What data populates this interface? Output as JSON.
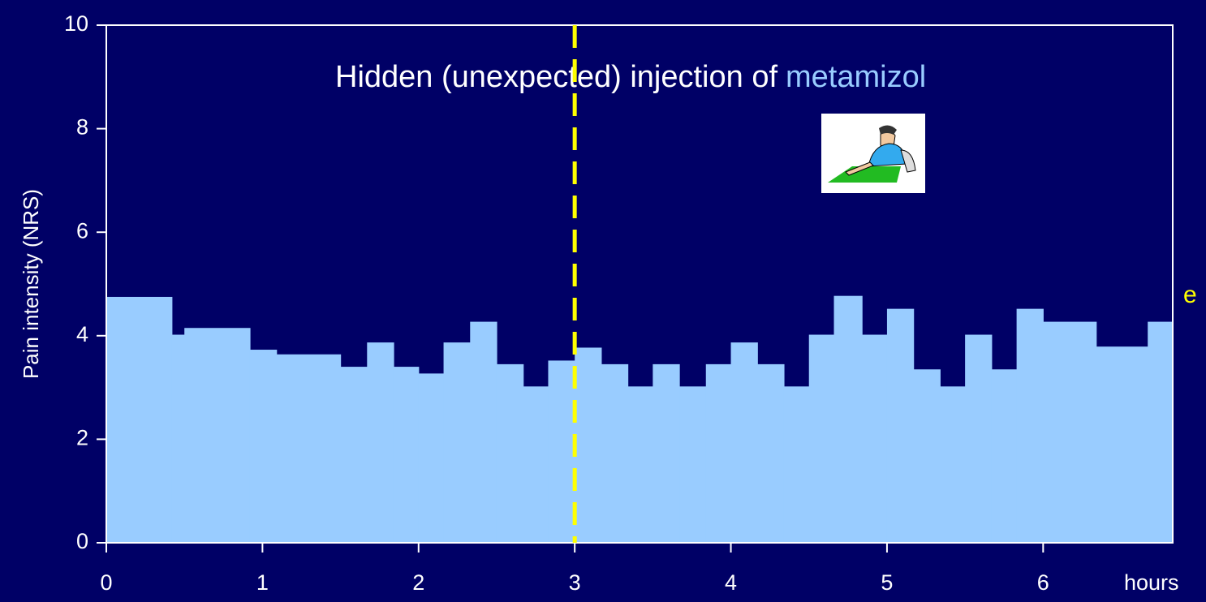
{
  "chart_data": {
    "type": "histogram",
    "y_label": "Pain intensity (NRS)",
    "x_label": "hours",
    "annotation": "Hidden (unexpected) injection of",
    "annotation_highlight": "metamizol",
    "side_text": "e",
    "marker_x": 3,
    "color": "#99ccff",
    "bins": [
      0,
      0.42,
      0.5,
      0.92,
      1.09,
      1.5,
      1.67,
      1.84,
      2.0,
      2.16,
      2.33,
      2.5,
      2.67,
      2.83,
      3.0,
      3.17,
      3.34,
      3.5,
      3.67,
      3.84,
      4.0,
      4.17,
      4.34,
      4.5,
      4.66,
      4.84,
      5.0,
      5.17,
      5.34,
      5.5,
      5.67,
      5.83,
      6.0,
      6.34,
      6.67,
      6.83
    ],
    "values": [
      4.75,
      4.02,
      4.15,
      3.73,
      3.64,
      3.4,
      3.87,
      3.4,
      3.27,
      3.87,
      4.27,
      3.45,
      3.02,
      3.52,
      3.77,
      3.45,
      3.02,
      3.45,
      3.02,
      3.45,
      3.87,
      3.45,
      3.02,
      4.02,
      4.77,
      4.02,
      4.52,
      3.35,
      3.02,
      4.02,
      3.35,
      4.52,
      4.27,
      3.79,
      4.27
    ],
    "xlim": [
      0,
      6.83
    ],
    "xticks": [
      0,
      1,
      2,
      3,
      4,
      5,
      6
    ],
    "ylim": [
      0,
      10
    ],
    "yticks": [
      0,
      2,
      4,
      6,
      8,
      10
    ]
  }
}
